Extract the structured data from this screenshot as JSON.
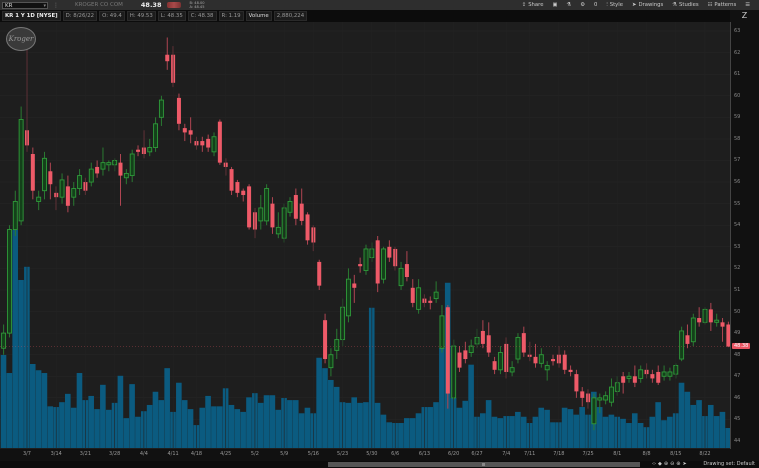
{
  "header": {
    "symbol": "KR",
    "company": "KROGER CO COM",
    "last": "48.38",
    "bid": "B: 48.00",
    "ask": "A: 48.45",
    "tools": [
      {
        "label": "Share",
        "icon": "share-icon"
      },
      {
        "label": "",
        "icon": "screenshot-icon"
      },
      {
        "label": "",
        "icon": "flask-icon"
      },
      {
        "label": "",
        "icon": "gear-icon"
      },
      {
        "label": "0",
        "icon": ""
      },
      {
        "label": "Style",
        "icon": "style-icon"
      },
      {
        "label": "Drawings",
        "icon": "cursor-icon"
      },
      {
        "label": "Studies",
        "icon": "studies-icon"
      },
      {
        "label": "Patterns",
        "icon": "patterns-icon"
      },
      {
        "label": "",
        "icon": "menu-icon"
      }
    ]
  },
  "info": {
    "title": "KR 1 Y 1D [NYSE]",
    "date": "D: 8/26/22",
    "open": "O: 49.4",
    "high": "H: 49.53",
    "low": "L: 48.35",
    "close": "C: 48.38",
    "range": "R: 1.19",
    "volume_label": "Volume",
    "volume": "2,880,224"
  },
  "logo_text": "Kroger",
  "footer": {
    "drawing_set": "Drawing set: Default"
  },
  "colors": {
    "up": "#2f9a3a",
    "down": "#ee5a68",
    "volume": "#0b5b80",
    "background": "#1e1e1e",
    "last_tag": "#e85563"
  },
  "chart_data": {
    "type": "candlestick",
    "title": "KR 1 Y 1D [NYSE]",
    "yticks": [
      44,
      45,
      46,
      47,
      48,
      49,
      50,
      51,
      52,
      53,
      54,
      55,
      56,
      57,
      58,
      59,
      60,
      61,
      62,
      63
    ],
    "ylim": [
      44,
      63
    ],
    "xticks": [
      "3/7",
      "3/14",
      "3/21",
      "3/28",
      "4/4",
      "4/11",
      "4/18",
      "4/25",
      "5/2",
      "5/9",
      "5/16",
      "5/23",
      "5/30",
      "6/6",
      "6/13",
      "6/20",
      "6/27",
      "7/4",
      "7/11",
      "7/18",
      "7/25",
      "8/1",
      "8/8",
      "8/15",
      "8/22"
    ],
    "last_price": 48.38,
    "fields": [
      "date",
      "open",
      "high",
      "low",
      "close",
      "volume_millions"
    ],
    "candles": [
      [
        "3/1",
        48.3,
        49.4,
        48.0,
        49.0,
        13.4
      ],
      [
        "3/2",
        49.0,
        54.0,
        48.8,
        53.8,
        10.8
      ],
      [
        "3/3",
        53.8,
        55.6,
        53.5,
        55.1,
        31.4
      ],
      [
        "3/4",
        54.2,
        59.5,
        54.0,
        58.9,
        24.2
      ],
      [
        "3/7",
        58.4,
        62.6,
        57.4,
        57.7,
        26.1
      ],
      [
        "3/8",
        57.3,
        57.6,
        55.2,
        55.6,
        12.1
      ],
      [
        "3/9",
        55.1,
        55.6,
        54.7,
        55.3,
        11.2
      ],
      [
        "3/10",
        55.6,
        57.4,
        55.2,
        57.1,
        10.8
      ],
      [
        "3/11",
        56.5,
        56.9,
        55.2,
        55.9,
        6.0
      ],
      [
        "3/14",
        55.5,
        55.8,
        54.7,
        55.3,
        5.9
      ],
      [
        "3/15",
        55.3,
        56.4,
        55.0,
        56.1,
        6.6
      ],
      [
        "3/16",
        55.8,
        56.3,
        54.6,
        54.9,
        7.8
      ],
      [
        "3/17",
        55.3,
        56.0,
        54.9,
        55.7,
        5.8
      ],
      [
        "3/18",
        55.7,
        56.6,
        55.4,
        56.3,
        10.8
      ],
      [
        "3/21",
        56.0,
        56.2,
        55.4,
        55.6,
        6.9
      ],
      [
        "3/22",
        56.0,
        56.9,
        55.8,
        56.6,
        7.5
      ],
      [
        "3/23",
        56.7,
        57.0,
        56.2,
        56.4,
        5.6
      ],
      [
        "3/24",
        56.6,
        57.6,
        56.3,
        56.9,
        9.1
      ],
      [
        "3/25",
        56.8,
        57.0,
        56.5,
        56.9,
        5.5
      ],
      [
        "3/28",
        56.8,
        57.1,
        56.5,
        57.0,
        6.5
      ],
      [
        "3/29",
        56.9,
        57.3,
        54.9,
        56.3,
        10.4
      ],
      [
        "3/30",
        56.2,
        56.6,
        55.9,
        56.4,
        4.3
      ],
      [
        "3/31",
        56.3,
        57.5,
        56.0,
        57.3,
        9.2
      ],
      [
        "4/1",
        57.5,
        57.7,
        57.2,
        57.4,
        4.5
      ],
      [
        "4/4",
        57.6,
        58.4,
        57.1,
        57.3,
        5.3
      ],
      [
        "4/5",
        57.4,
        58.0,
        57.2,
        57.6,
        6.2
      ],
      [
        "4/6",
        57.6,
        59.0,
        57.4,
        58.7,
        8.1
      ],
      [
        "4/7",
        59.0,
        60.0,
        58.6,
        59.8,
        6.9
      ],
      [
        "4/8",
        61.9,
        62.7,
        61.2,
        61.6,
        11.5
      ],
      [
        "4/11",
        61.9,
        62.3,
        60.4,
        60.6,
        5.2
      ],
      [
        "4/12",
        59.9,
        60.1,
        58.4,
        58.7,
        9.4
      ],
      [
        "4/13",
        58.5,
        58.7,
        57.9,
        58.3,
        6.9
      ],
      [
        "4/14",
        58.4,
        59.0,
        57.8,
        58.2,
        5.6
      ],
      [
        "4/18",
        57.9,
        58.1,
        57.5,
        57.7,
        3.3
      ],
      [
        "4/19",
        57.9,
        58.1,
        57.4,
        57.7,
        5.8
      ],
      [
        "4/20",
        58.0,
        58.2,
        57.4,
        57.6,
        7.5
      ],
      [
        "4/21",
        57.4,
        58.3,
        57.2,
        58.1,
        6.0
      ],
      [
        "4/22",
        58.8,
        58.9,
        56.8,
        56.9,
        6.0
      ],
      [
        "4/25",
        56.9,
        57.1,
        56.3,
        56.7,
        8.6
      ],
      [
        "4/26",
        56.6,
        56.7,
        55.4,
        55.6,
        6.2
      ],
      [
        "4/27",
        56.0,
        56.1,
        55.3,
        55.5,
        5.6
      ],
      [
        "4/28",
        55.6,
        55.7,
        55.1,
        55.4,
        5.2
      ],
      [
        "4/29",
        55.8,
        55.9,
        53.8,
        53.9,
        7.3
      ],
      [
        "5/2",
        54.6,
        54.8,
        53.4,
        53.8,
        7.9
      ],
      [
        "5/3",
        54.2,
        55.4,
        53.8,
        54.8,
        6.5
      ],
      [
        "5/4",
        54.2,
        55.9,
        54.0,
        55.7,
        7.6
      ],
      [
        "5/5",
        55.0,
        55.3,
        53.6,
        53.9,
        7.6
      ],
      [
        "5/6",
        53.6,
        54.6,
        53.4,
        53.9,
        5.5
      ],
      [
        "5/9",
        53.4,
        55.0,
        53.2,
        54.8,
        7.2
      ],
      [
        "5/10",
        54.6,
        55.3,
        54.4,
        55.1,
        6.9
      ],
      [
        "5/11",
        55.4,
        55.7,
        54.0,
        54.3,
        6.9
      ],
      [
        "5/12",
        55.0,
        55.7,
        54.0,
        54.2,
        5.0
      ],
      [
        "5/13",
        54.5,
        54.6,
        53.1,
        53.3,
        5.8
      ],
      [
        "5/16",
        53.9,
        54.0,
        52.8,
        53.2,
        5.0
      ],
      [
        "5/17",
        52.3,
        52.4,
        51.0,
        51.2,
        13.0
      ],
      [
        "5/18",
        49.6,
        49.9,
        47.6,
        47.8,
        11.5
      ],
      [
        "5/19",
        47.4,
        48.3,
        47.0,
        48.0,
        9.8
      ],
      [
        "5/20",
        48.2,
        49.2,
        47.8,
        48.7,
        8.8
      ],
      [
        "5/23",
        48.7,
        50.6,
        48.4,
        50.2,
        6.6
      ],
      [
        "5/24",
        49.8,
        52.0,
        49.5,
        51.5,
        6.5
      ],
      [
        "5/25",
        51.3,
        51.7,
        50.4,
        51.1,
        7.3
      ],
      [
        "5/26",
        52.2,
        52.5,
        51.8,
        52.1,
        6.5
      ],
      [
        "5/27",
        51.9,
        53.1,
        51.7,
        52.9,
        6.6
      ],
      [
        "5/31",
        52.5,
        53.2,
        52.3,
        52.9,
        20.2
      ],
      [
        "6/1",
        53.3,
        53.5,
        50.9,
        51.3,
        6.5
      ],
      [
        "6/2",
        51.5,
        53.0,
        51.3,
        52.9,
        4.8
      ],
      [
        "6/3",
        53.0,
        53.3,
        52.3,
        52.5,
        3.7
      ],
      [
        "6/6",
        52.9,
        53.0,
        51.9,
        52.1,
        3.6
      ],
      [
        "6/7",
        51.2,
        52.3,
        51.0,
        52.0,
        3.6
      ],
      [
        "6/8",
        52.2,
        52.8,
        51.4,
        51.6,
        4.3
      ],
      [
        "6/9",
        51.1,
        51.5,
        50.2,
        50.4,
        4.3
      ],
      [
        "6/10",
        50.1,
        51.5,
        49.9,
        51.1,
        5.0
      ],
      [
        "6/13",
        50.6,
        50.8,
        50.2,
        50.4,
        5.9
      ],
      [
        "6/14",
        50.5,
        50.7,
        50.1,
        50.4,
        5.9
      ],
      [
        "6/15",
        50.6,
        51.4,
        50.4,
        50.9,
        6.6
      ],
      [
        "6/16",
        48.3,
        50.3,
        48.1,
        49.8,
        14.4
      ],
      [
        "6/17",
        50.2,
        50.3,
        45.5,
        46.2,
        23.8
      ],
      [
        "6/21",
        46.0,
        48.7,
        45.9,
        48.4,
        7.2
      ],
      [
        "6/22",
        48.1,
        48.4,
        47.2,
        47.4,
        5.8
      ],
      [
        "6/23",
        48.2,
        48.6,
        47.6,
        47.8,
        6.8
      ],
      [
        "6/24",
        48.1,
        48.7,
        47.9,
        48.4,
        12.0
      ],
      [
        "6/27",
        48.5,
        49.2,
        48.3,
        48.8,
        4.5
      ],
      [
        "6/28",
        49.1,
        49.6,
        48.3,
        48.5,
        5.0
      ],
      [
        "6/29",
        48.9,
        49.5,
        47.9,
        48.1,
        6.9
      ],
      [
        "6/30",
        47.7,
        47.9,
        47.1,
        47.3,
        4.5
      ],
      [
        "7/1",
        47.3,
        48.4,
        47.1,
        48.1,
        4.3
      ],
      [
        "7/5",
        48.5,
        48.8,
        46.9,
        47.2,
        4.6
      ],
      [
        "7/6",
        47.2,
        47.7,
        47.0,
        47.4,
        4.6
      ],
      [
        "7/7",
        47.8,
        49.0,
        47.6,
        48.8,
        5.2
      ],
      [
        "7/8",
        49.0,
        49.3,
        47.9,
        48.1,
        4.5
      ],
      [
        "7/11",
        48.0,
        48.6,
        47.7,
        47.9,
        3.6
      ],
      [
        "7/12",
        47.9,
        48.5,
        47.4,
        47.6,
        4.5
      ],
      [
        "7/13",
        47.6,
        48.3,
        47.4,
        48.0,
        5.8
      ],
      [
        "7/14",
        47.3,
        47.7,
        46.8,
        47.5,
        5.5
      ],
      [
        "7/15",
        47.8,
        48.0,
        47.5,
        47.7,
        3.7
      ],
      [
        "7/18",
        48.0,
        48.4,
        47.4,
        47.6,
        3.7
      ],
      [
        "7/19",
        48.0,
        48.2,
        47.1,
        47.3,
        5.8
      ],
      [
        "7/20",
        47.3,
        47.5,
        47.0,
        47.2,
        5.6
      ],
      [
        "7/21",
        47.1,
        47.3,
        46.0,
        46.3,
        4.8
      ],
      [
        "7/22",
        46.3,
        46.5,
        45.6,
        46.0,
        5.9
      ],
      [
        "7/25",
        46.2,
        46.4,
        45.5,
        45.8,
        4.8
      ],
      [
        "7/26",
        44.8,
        46.2,
        44.5,
        46.0,
        8.1
      ],
      [
        "7/27",
        45.9,
        46.2,
        45.3,
        46.0,
        5.9
      ],
      [
        "7/28",
        45.9,
        46.3,
        45.7,
        46.1,
        4.5
      ],
      [
        "7/29",
        45.8,
        46.9,
        45.6,
        46.5,
        4.8
      ],
      [
        "8/1",
        46.3,
        47.0,
        46.1,
        46.7,
        4.5
      ],
      [
        "8/2",
        47.0,
        47.2,
        46.2,
        46.7,
        4.2
      ],
      [
        "8/3",
        46.9,
        47.2,
        46.7,
        47.0,
        3.6
      ],
      [
        "8/4",
        47.0,
        47.5,
        46.5,
        46.7,
        5.0
      ],
      [
        "8/5",
        46.9,
        47.5,
        46.7,
        47.3,
        3.6
      ],
      [
        "8/8",
        47.3,
        47.6,
        46.9,
        47.1,
        3.0
      ],
      [
        "8/9",
        47.1,
        47.3,
        46.7,
        46.9,
        4.5
      ],
      [
        "8/10",
        47.2,
        47.5,
        46.6,
        46.7,
        6.6
      ],
      [
        "8/11",
        47.0,
        47.5,
        46.8,
        47.2,
        4.0
      ],
      [
        "8/12",
        47.0,
        47.4,
        46.8,
        47.2,
        4.5
      ],
      [
        "8/15",
        47.1,
        47.6,
        46.9,
        47.5,
        5.0
      ],
      [
        "8/16",
        47.8,
        49.3,
        47.7,
        49.1,
        9.4
      ],
      [
        "8/17",
        48.9,
        49.4,
        48.3,
        48.5,
        8.1
      ],
      [
        "8/18",
        48.6,
        49.9,
        48.4,
        49.7,
        6.2
      ],
      [
        "8/19",
        49.7,
        50.2,
        49.3,
        49.5,
        6.9
      ],
      [
        "8/22",
        49.5,
        50.2,
        49.4,
        50.1,
        4.6
      ],
      [
        "8/23",
        50.1,
        50.4,
        49.1,
        49.5,
        6.2
      ],
      [
        "8/24",
        49.5,
        49.9,
        49.3,
        49.6,
        4.6
      ],
      [
        "8/25",
        49.5,
        49.7,
        48.6,
        49.3,
        5.2
      ],
      [
        "8/26",
        49.4,
        49.53,
        48.35,
        48.38,
        2.88
      ]
    ]
  }
}
